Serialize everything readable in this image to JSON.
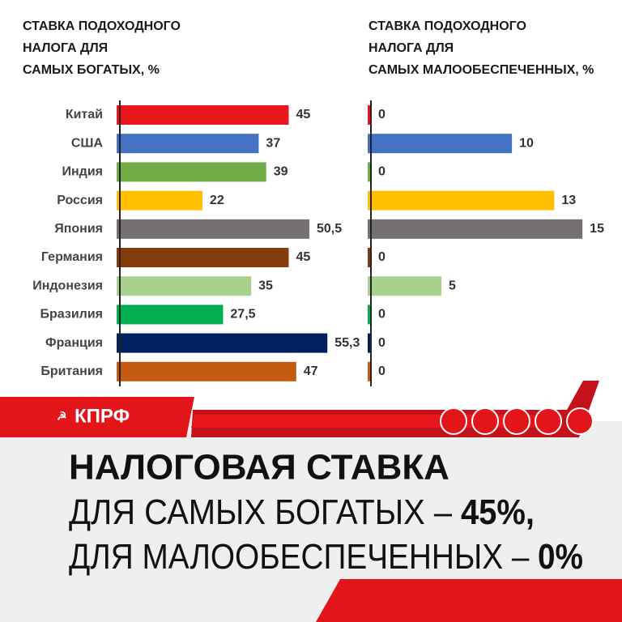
{
  "page": {
    "logo": "КПРФ",
    "headline": {
      "line1": "НАЛОГОВАЯ СТАВКА",
      "line2": [
        "ДЛЯ САМЫХ БОГАТЫХ –",
        "45%,"
      ],
      "line3": [
        "ДЛЯ МАЛООБЕСПЕЧЕННЫХ –",
        "0%"
      ]
    }
  },
  "chart_data": [
    {
      "type": "hbar",
      "title": [
        "СТАВКА ПОДОХОДНОГО",
        "НАЛОГА ДЛЯ",
        "САМЫХ БОГАТЫХ, %"
      ],
      "categories": [
        "Китай",
        "США",
        "Индия",
        "Россия",
        "Япония",
        "Германия",
        "Индонезия",
        "Бразилия",
        "Франция",
        "Британия"
      ],
      "values": [
        45,
        37,
        39,
        22,
        50.5,
        45,
        35,
        27.5,
        55.3,
        47
      ],
      "value_labels": [
        "45",
        "37",
        "39",
        "22",
        "50,5",
        "45",
        "35",
        "27,5",
        "55,3",
        "47"
      ],
      "colors": [
        "#e8161b",
        "#4472c4",
        "#70ad47",
        "#ffc000",
        "#767171",
        "#843c0c",
        "#a9d18e",
        "#00b050",
        "#002060",
        "#c55a11"
      ],
      "xlim": [
        0,
        60
      ]
    },
    {
      "type": "hbar",
      "title": [
        "СТАВКА ПОДОХОДНОГО",
        "НАЛОГА ДЛЯ",
        "САМЫХ МАЛООБЕСПЕЧЕННЫХ, %"
      ],
      "values": [
        0,
        10,
        0,
        13,
        15,
        0,
        5,
        0,
        0,
        0
      ],
      "colors": [
        "#e8161b",
        "#4472c4",
        "#70ad47",
        "#ffc000",
        "#767171",
        "#843c0c",
        "#a9d18e",
        "#00b050",
        "#002060",
        "#c55a11"
      ],
      "xlim": [
        0,
        17
      ]
    }
  ]
}
